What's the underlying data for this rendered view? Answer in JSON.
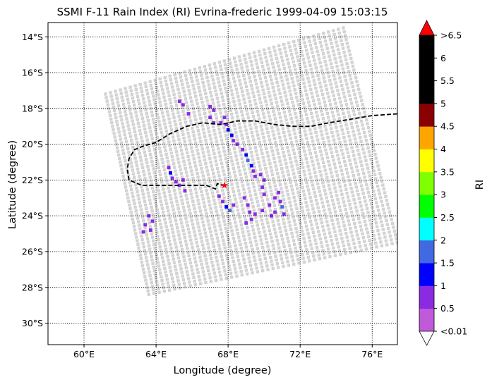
{
  "title": "SSMI F-11 Rain Index (RI) Evrina-frederic 1999-04-09 15:03:15",
  "xlabel": "Longitude (degree)",
  "ylabel": "Latitude (degree)",
  "colorbar_label": "RI",
  "x_ticks": [
    "60°E",
    "64°E",
    "68°E",
    "72°E",
    "76°E"
  ],
  "y_ticks": [
    "14°S",
    "16°S",
    "18°S",
    "20°S",
    "22°S",
    "24°S",
    "26°S",
    "28°S",
    "30°S"
  ],
  "colorbar_ticks": [
    "<0.01",
    "0.5",
    "1",
    "1.5",
    "2",
    "2.5",
    "3",
    "3.5",
    "4",
    "4.5",
    "5",
    "5.5",
    "6",
    ">6.5"
  ],
  "colorbar_colors": [
    "#c05ad8",
    "#8a2be2",
    "#0000ff",
    "#4169e1",
    "#00ffff",
    "#00ff00",
    "#7fff00",
    "#ffff00",
    "#ffa500",
    "#8b0000",
    "#000000",
    "#000000",
    "#000000"
  ],
  "colorbar_over_color": "#ff0000",
  "colorbar_under_color": "#ffffff",
  "colors": {
    "no_rain": "#d3d3d3",
    "track": "#000000",
    "storm_center": "#ff0000"
  },
  "chart_data": {
    "type": "map",
    "xlim": [
      58.0,
      77.4
    ],
    "ylim": [
      -31.2,
      -13.2
    ],
    "grid": true,
    "swath_corners": [
      [
        61.2,
        -17.2
      ],
      [
        74.4,
        -13.5
      ],
      [
        77.4,
        -25.5
      ],
      [
        63.6,
        -28.4
      ]
    ],
    "track": [
      [
        77.4,
        -18.3
      ],
      [
        76.0,
        -18.4
      ],
      [
        74.8,
        -18.6
      ],
      [
        73.6,
        -18.8
      ],
      [
        72.6,
        -19.0
      ],
      [
        71.6,
        -19.0
      ],
      [
        70.6,
        -18.9
      ],
      [
        69.5,
        -18.7
      ],
      [
        68.5,
        -18.7
      ],
      [
        67.6,
        -18.9
      ],
      [
        66.6,
        -18.8
      ],
      [
        65.7,
        -19.0
      ],
      [
        64.8,
        -19.4
      ],
      [
        64.0,
        -19.9
      ],
      [
        63.3,
        -20.1
      ],
      [
        62.8,
        -20.3
      ],
      [
        62.5,
        -20.8
      ],
      [
        62.4,
        -21.4
      ],
      [
        62.5,
        -22.0
      ],
      [
        63.2,
        -22.3
      ],
      [
        64.0,
        -22.3
      ],
      [
        65.0,
        -22.3
      ],
      [
        66.0,
        -22.3
      ],
      [
        66.8,
        -22.3
      ],
      [
        67.3,
        -22.5
      ],
      [
        67.4,
        -22.2
      ],
      [
        67.7,
        -22.3
      ]
    ],
    "storm_center": [
      67.8,
      -22.3
    ],
    "rain_cells": [
      [
        65.3,
        -17.6,
        0.5
      ],
      [
        65.5,
        -17.8,
        0.5
      ],
      [
        65.8,
        -18.3,
        0.5
      ],
      [
        67.0,
        -17.9,
        0.5
      ],
      [
        67.2,
        -18.1,
        0.5
      ],
      [
        67.0,
        -18.5,
        0.5
      ],
      [
        67.2,
        -18.8,
        0.5
      ],
      [
        67.6,
        -18.8,
        0.5
      ],
      [
        67.8,
        -18.5,
        0.5
      ],
      [
        67.9,
        -18.9,
        0.5
      ],
      [
        68.0,
        -19.2,
        1.0
      ],
      [
        68.2,
        -19.5,
        1.0
      ],
      [
        68.3,
        -19.8,
        0.5
      ],
      [
        68.5,
        -20.0,
        0.5
      ],
      [
        68.8,
        -20.3,
        0.5
      ],
      [
        69.0,
        -20.6,
        1.0
      ],
      [
        69.1,
        -20.9,
        1.5
      ],
      [
        69.3,
        -21.2,
        1.0
      ],
      [
        69.4,
        -21.5,
        0.5
      ],
      [
        69.5,
        -21.8,
        0.5
      ],
      [
        69.8,
        -21.7,
        0.5
      ],
      [
        70.0,
        -22.0,
        0.5
      ],
      [
        69.9,
        -22.4,
        0.5
      ],
      [
        70.0,
        -22.8,
        0.5
      ],
      [
        64.7,
        -21.3,
        0.5
      ],
      [
        64.8,
        -21.6,
        1.0
      ],
      [
        64.9,
        -21.9,
        0.5
      ],
      [
        65.1,
        -22.1,
        0.5
      ],
      [
        65.3,
        -22.3,
        0.5
      ],
      [
        65.5,
        -22.0,
        0.5
      ],
      [
        65.6,
        -22.6,
        0.5
      ],
      [
        67.5,
        -22.9,
        0.5
      ],
      [
        67.7,
        -23.2,
        0.5
      ],
      [
        67.9,
        -23.5,
        1.0
      ],
      [
        68.1,
        -23.7,
        1.5
      ],
      [
        68.3,
        -23.4,
        0.5
      ],
      [
        68.9,
        -23.0,
        0.5
      ],
      [
        69.1,
        -23.4,
        0.5
      ],
      [
        69.2,
        -23.8,
        0.5
      ],
      [
        69.5,
        -23.9,
        0.5
      ],
      [
        69.9,
        -23.7,
        0.5
      ],
      [
        70.3,
        -23.4,
        0.5
      ],
      [
        70.6,
        -23.0,
        0.5
      ],
      [
        70.8,
        -22.7,
        0.5
      ],
      [
        70.9,
        -23.2,
        0.5
      ],
      [
        71.0,
        -23.5,
        1.5
      ],
      [
        71.1,
        -23.9,
        0.5
      ],
      [
        70.6,
        -23.8,
        0.5
      ],
      [
        70.4,
        -24.0,
        0.5
      ],
      [
        69.3,
        -24.2,
        0.5
      ],
      [
        69.0,
        -24.4,
        0.5
      ],
      [
        63.6,
        -24.0,
        0.5
      ],
      [
        63.8,
        -24.3,
        0.5
      ],
      [
        63.4,
        -24.5,
        0.5
      ],
      [
        63.7,
        -24.8,
        0.5
      ],
      [
        63.3,
        -24.9,
        0.5
      ]
    ]
  }
}
